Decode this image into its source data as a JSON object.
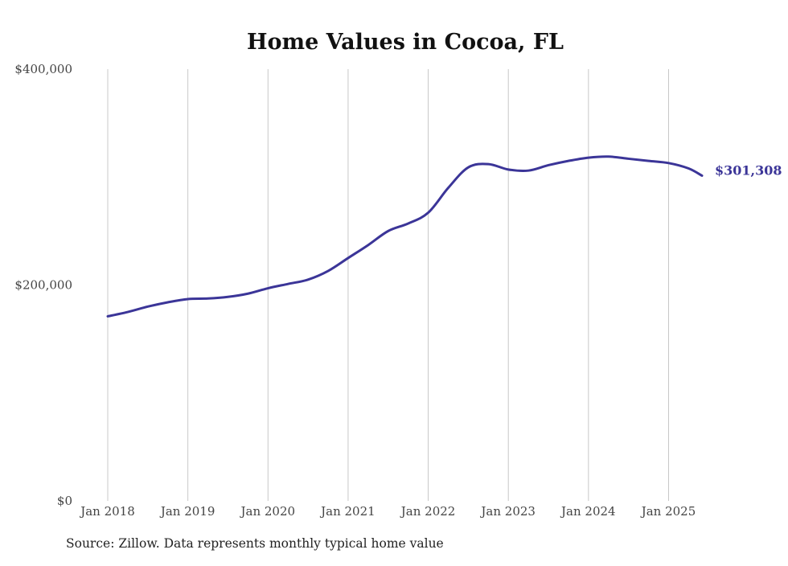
{
  "colors": {
    "line": "#3b3598",
    "grid": "#c8c8c8",
    "text": "#222222"
  },
  "chart_data": {
    "type": "line",
    "title": "Home Values in Cocoa, FL",
    "xlabel": "",
    "ylabel": "",
    "ylim": [
      0,
      400000
    ],
    "xlim": [
      "2018-01",
      "2025-06"
    ],
    "grid": "vertical",
    "y_ticks": [
      {
        "value": 0,
        "label": "$0"
      },
      {
        "value": 200000,
        "label": "$200,000"
      },
      {
        "value": 400000,
        "label": "$400,000"
      }
    ],
    "x_ticks": [
      {
        "value": "2018-01",
        "label": "Jan 2018"
      },
      {
        "value": "2019-01",
        "label": "Jan 2019"
      },
      {
        "value": "2020-01",
        "label": "Jan 2020"
      },
      {
        "value": "2021-01",
        "label": "Jan 2021"
      },
      {
        "value": "2022-01",
        "label": "Jan 2022"
      },
      {
        "value": "2023-01",
        "label": "Jan 2023"
      },
      {
        "value": "2024-01",
        "label": "Jan 2024"
      },
      {
        "value": "2025-01",
        "label": "Jan 2025"
      }
    ],
    "series": [
      {
        "values": [
          {
            "x": "2018-01",
            "y": 171000
          },
          {
            "x": "2018-04",
            "y": 175000
          },
          {
            "x": "2018-07",
            "y": 180000
          },
          {
            "x": "2018-10",
            "y": 184000
          },
          {
            "x": "2019-01",
            "y": 187000
          },
          {
            "x": "2019-04",
            "y": 187500
          },
          {
            "x": "2019-07",
            "y": 189000
          },
          {
            "x": "2019-10",
            "y": 192000
          },
          {
            "x": "2020-01",
            "y": 197000
          },
          {
            "x": "2020-04",
            "y": 201000
          },
          {
            "x": "2020-07",
            "y": 205000
          },
          {
            "x": "2020-10",
            "y": 213000
          },
          {
            "x": "2021-01",
            "y": 225000
          },
          {
            "x": "2021-04",
            "y": 237000
          },
          {
            "x": "2021-07",
            "y": 250000
          },
          {
            "x": "2021-10",
            "y": 257000
          },
          {
            "x": "2022-01",
            "y": 267000
          },
          {
            "x": "2022-04",
            "y": 290000
          },
          {
            "x": "2022-07",
            "y": 309000
          },
          {
            "x": "2022-10",
            "y": 312000
          },
          {
            "x": "2023-01",
            "y": 307000
          },
          {
            "x": "2023-04",
            "y": 306000
          },
          {
            "x": "2023-07",
            "y": 311000
          },
          {
            "x": "2023-10",
            "y": 315000
          },
          {
            "x": "2024-01",
            "y": 318000
          },
          {
            "x": "2024-04",
            "y": 319000
          },
          {
            "x": "2024-07",
            "y": 317000
          },
          {
            "x": "2024-10",
            "y": 315000
          },
          {
            "x": "2025-01",
            "y": 313000
          },
          {
            "x": "2025-04",
            "y": 308000
          },
          {
            "x": "2025-06",
            "y": 301308
          }
        ],
        "end_label": "$301,308"
      }
    ],
    "source": "Source: Zillow. Data represents monthly typical home value"
  }
}
